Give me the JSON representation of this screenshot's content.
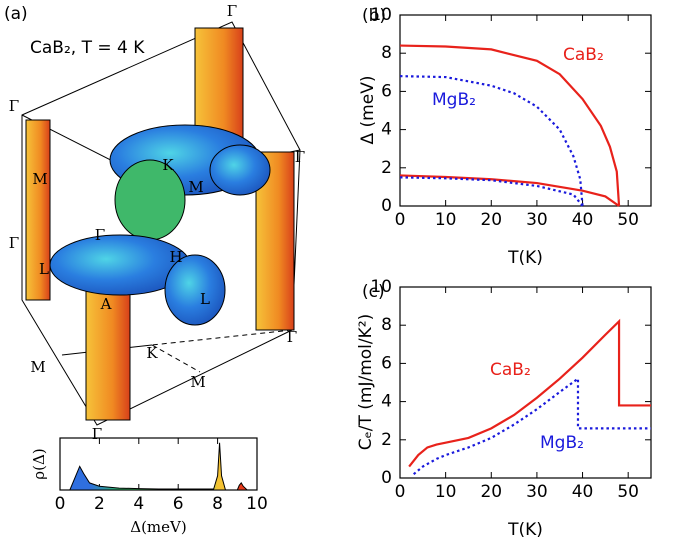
{
  "figure": {
    "panel_a": {
      "panel_label": "(a)",
      "caption": "CaB₂, T = 4 K",
      "labels": [
        "Γ",
        "Γ",
        "Γ",
        "Γ",
        "Γ",
        "Γ",
        "Γ",
        "M",
        "M",
        "M",
        "M",
        "K",
        "K",
        "H",
        "L",
        "L",
        "A"
      ]
    }
  },
  "chart_data": [
    {
      "type": "area",
      "xlabel": "Δ(meV)",
      "ylabel": "ρ(Δ)",
      "x": [
        0,
        0.5,
        0.8,
        1,
        1.2,
        1.5,
        2,
        3,
        4,
        5,
        6,
        7,
        7.8,
        8,
        8.1,
        8.2,
        8.4,
        9,
        9.1,
        9.2,
        9.3,
        9.5,
        10
      ],
      "values": [
        0,
        0,
        0.3,
        0.5,
        0.35,
        0.15,
        0.08,
        0.04,
        0.03,
        0.02,
        0.02,
        0.02,
        0.02,
        0.3,
        1,
        0.3,
        0,
        0,
        0.1,
        0.15,
        0.08,
        0,
        0
      ],
      "xlim": [
        0,
        10
      ],
      "xticks": [
        0,
        2,
        4,
        6,
        8,
        10
      ],
      "ylim": [
        0,
        1.1
      ]
    },
    {
      "type": "line",
      "panel_label": "(b)",
      "xlabel": "T(K)",
      "ylabel": "Δ (meV)",
      "xlim": [
        0,
        55
      ],
      "xticks": [
        0,
        10,
        20,
        30,
        40,
        50
      ],
      "ylim": [
        0,
        10
      ],
      "yticks": [
        0,
        2,
        4,
        6,
        8,
        10
      ],
      "series": [
        {
          "name": "CaB₂",
          "color": "#e8221b",
          "style": "solid",
          "curves": [
            {
              "x": [
                0,
                10,
                20,
                30,
                35,
                40,
                44,
                46,
                47.5,
                48
              ],
              "values": [
                8.4,
                8.35,
                8.2,
                7.6,
                6.9,
                5.6,
                4.2,
                3.1,
                1.8,
                0
              ]
            },
            {
              "x": [
                0,
                10,
                20,
                30,
                40,
                45,
                48
              ],
              "values": [
                1.6,
                1.52,
                1.4,
                1.2,
                0.8,
                0.5,
                0
              ]
            }
          ]
        },
        {
          "name": "MgB₂",
          "color": "#1a1adc",
          "style": "dotted",
          "curves": [
            {
              "x": [
                0,
                10,
                20,
                25,
                30,
                35,
                38,
                39.5,
                40
              ],
              "values": [
                6.8,
                6.75,
                6.3,
                5.9,
                5.2,
                4.0,
                2.6,
                1.4,
                0
              ]
            },
            {
              "x": [
                0,
                10,
                20,
                30,
                38,
                40
              ],
              "values": [
                1.5,
                1.45,
                1.35,
                1.05,
                0.6,
                0
              ]
            }
          ]
        }
      ]
    },
    {
      "type": "line",
      "panel_label": "(c)",
      "xlabel": "T(K)",
      "ylabel": "Cₑ/T (mJ/mol/K²)",
      "xlim": [
        0,
        55
      ],
      "xticks": [
        0,
        10,
        20,
        30,
        40,
        50
      ],
      "ylim": [
        0,
        10
      ],
      "yticks": [
        0,
        2,
        4,
        6,
        8,
        10
      ],
      "series": [
        {
          "name": "CaB₂",
          "color": "#e8221b",
          "style": "solid",
          "curves": [
            {
              "x": [
                2,
                4,
                6,
                8,
                10,
                15,
                20,
                25,
                30,
                35,
                40,
                45,
                48,
                48,
                55
              ],
              "values": [
                0.6,
                1.2,
                1.6,
                1.75,
                1.85,
                2.1,
                2.6,
                3.3,
                4.2,
                5.2,
                6.3,
                7.5,
                8.2,
                3.8,
                3.8
              ]
            }
          ]
        },
        {
          "name": "MgB₂",
          "color": "#1a1adc",
          "style": "dotted",
          "curves": [
            {
              "x": [
                3,
                5,
                8,
                10,
                15,
                20,
                25,
                30,
                35,
                39,
                39,
                55
              ],
              "values": [
                0.2,
                0.6,
                1.0,
                1.2,
                1.6,
                2.1,
                2.8,
                3.6,
                4.5,
                5.2,
                2.6,
                2.6
              ]
            }
          ]
        }
      ]
    }
  ]
}
